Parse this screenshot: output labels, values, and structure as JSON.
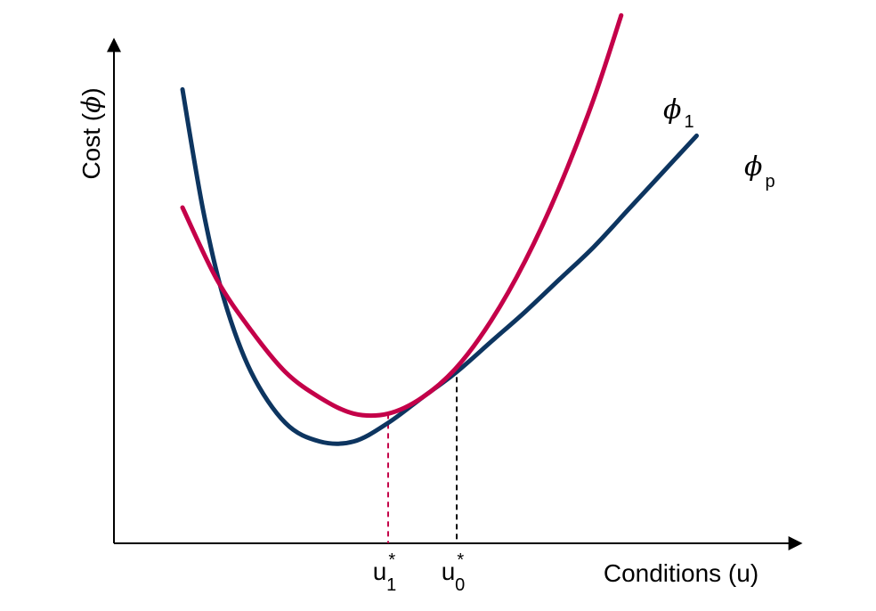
{
  "chart_data": {
    "type": "line",
    "xlabel": {
      "prefix": "Conditions (u)"
    },
    "ylabel": {
      "prefix": "Cost (",
      "symbol": "ϕ",
      "suffix": ")"
    },
    "xlim": [
      0,
      10
    ],
    "ylim": [
      0,
      10
    ],
    "grid": false,
    "legend": "none",
    "series": [
      {
        "label_symbol": "ϕ",
        "label_subscript": "p",
        "color": "#0d3560",
        "points": [
          [
            1.0,
            9.8
          ],
          [
            1.3,
            7.2
          ],
          [
            1.6,
            5.3
          ],
          [
            2.0,
            3.7
          ],
          [
            2.5,
            2.6
          ],
          [
            3.0,
            2.2
          ],
          [
            3.5,
            2.2
          ],
          [
            4.0,
            2.6
          ],
          [
            4.5,
            3.15
          ],
          [
            5.0,
            3.7
          ],
          [
            5.5,
            4.35
          ],
          [
            6.0,
            5.0
          ],
          [
            6.5,
            5.7
          ],
          [
            7.0,
            6.4
          ],
          [
            7.5,
            7.2
          ],
          [
            8.0,
            8.0
          ],
          [
            8.5,
            8.8
          ]
        ]
      },
      {
        "label_symbol": "ϕ",
        "label_subscript": "1",
        "color": "#c40049",
        "points": [
          [
            1.0,
            7.25
          ],
          [
            1.5,
            5.7
          ],
          [
            2.0,
            4.6
          ],
          [
            2.5,
            3.7
          ],
          [
            3.0,
            3.15
          ],
          [
            3.5,
            2.8
          ],
          [
            4.0,
            2.8
          ],
          [
            4.5,
            3.15
          ],
          [
            5.0,
            3.8
          ],
          [
            5.5,
            4.8
          ],
          [
            6.0,
            6.1
          ],
          [
            6.5,
            7.7
          ],
          [
            7.0,
            9.6
          ],
          [
            7.4,
            11.4
          ]
        ]
      }
    ],
    "markers": [
      {
        "x": 4.0,
        "y": 2.8,
        "color": "#c40049",
        "label_base": "u",
        "label_sub": "1",
        "label_sup": "*"
      },
      {
        "x": 5.0,
        "y": 3.8,
        "color": "#000000",
        "label_base": "u",
        "label_sub": "0",
        "label_sup": "*"
      }
    ]
  }
}
